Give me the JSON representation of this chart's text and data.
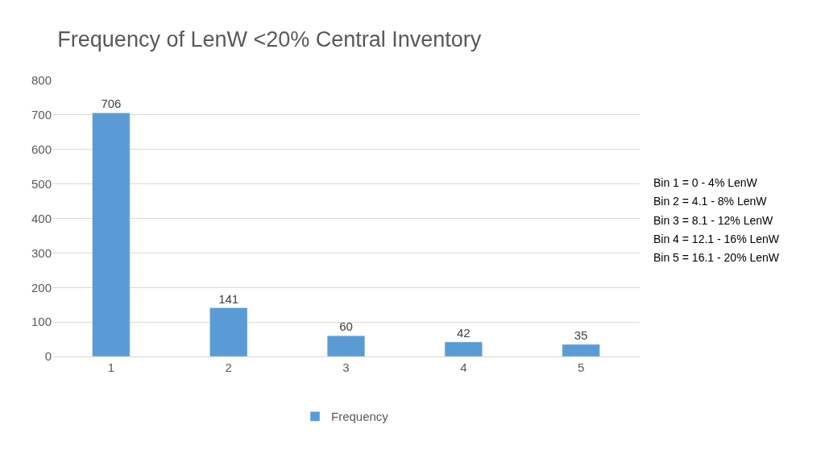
{
  "chart_data": {
    "type": "bar",
    "title": "Frequency of LenW <20% Central Inventory",
    "categories": [
      "1",
      "2",
      "3",
      "4",
      "5"
    ],
    "series": [
      {
        "name": "Frequency",
        "color": "#5b9bd5",
        "values": [
          706,
          141,
          60,
          42,
          35
        ]
      }
    ],
    "ylim": [
      0,
      800
    ],
    "yticks": [
      0,
      100,
      200,
      300,
      400,
      500,
      600,
      700,
      800
    ],
    "grid": "y",
    "legend": "bottom",
    "data_labels": true,
    "annotations": [
      "Bin 1 = 0 - 4% LenW",
      "Bin 2 = 4.1 - 8% LenW",
      "Bin 3 = 8.1 - 12% LenW",
      "Bin 4 = 12.1 - 16% LenW",
      "Bin 5 = 16.1 - 20% LenW"
    ]
  }
}
